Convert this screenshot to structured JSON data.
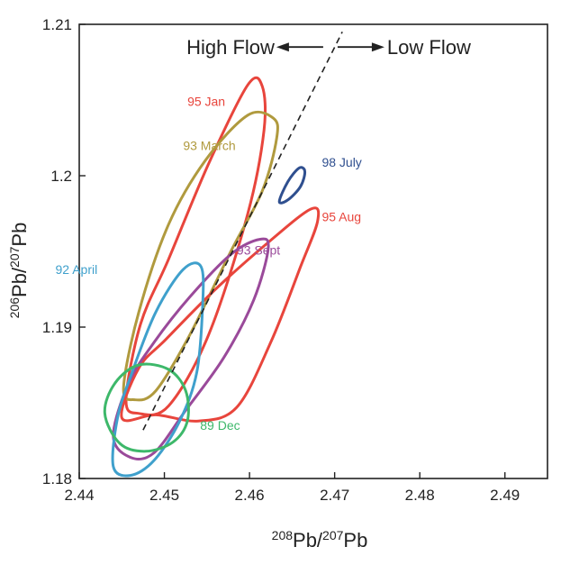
{
  "chart_data": {
    "type": "contour",
    "x_label": {
      "sup1": "208",
      "base1": "Pb/",
      "sup2": "207",
      "base2": "Pb"
    },
    "y_label": {
      "sup1": "206",
      "base1": "Pb/",
      "sup2": "207",
      "base2": "Pb"
    },
    "xlim": [
      2.44,
      2.495
    ],
    "ylim": [
      1.18,
      1.21
    ],
    "x_ticks": [
      2.44,
      2.45,
      2.46,
      2.47,
      2.48,
      2.49
    ],
    "x_tick_labels": [
      "2.44",
      "2.45",
      "2.46",
      "2.47",
      "2.48",
      "2.49"
    ],
    "y_ticks": [
      1.18,
      1.19,
      1.2,
      1.21
    ],
    "y_tick_labels": [
      "1.18",
      "1.19",
      "1.2",
      "1.21"
    ],
    "grid": false,
    "annotations": {
      "left": "High Flow",
      "right": "Low Flow",
      "arrow_center": [
        2.4695,
        1.2085
      ],
      "dashed_line": [
        [
          2.4475,
          1.1832
        ],
        [
          2.4709,
          1.2095
        ]
      ]
    },
    "series": [
      {
        "name": "95 Jan",
        "color": "#e8453c",
        "label_at": [
          2.4527,
          1.2046
        ],
        "outline": [
          [
            2.4455,
            1.1852
          ],
          [
            2.4472,
            1.1902
          ],
          [
            2.4505,
            1.1945
          ],
          [
            2.4552,
            1.2008
          ],
          [
            2.4598,
            1.206
          ],
          [
            2.4615,
            1.2059
          ],
          [
            2.4617,
            1.203
          ],
          [
            2.4598,
            1.1975
          ],
          [
            2.4552,
            1.1895
          ],
          [
            2.4505,
            1.1848
          ],
          [
            2.447,
            1.1843
          ]
        ]
      },
      {
        "name": "93 March",
        "color": "#b09a3e",
        "label_at": [
          2.4522,
          1.2017
        ],
        "outline": [
          [
            2.4452,
            1.186
          ],
          [
            2.447,
            1.191
          ],
          [
            2.4505,
            1.1968
          ],
          [
            2.4548,
            1.201
          ],
          [
            2.4598,
            1.204
          ],
          [
            2.4628,
            1.2038
          ],
          [
            2.4632,
            1.2025
          ],
          [
            2.4615,
            1.199
          ],
          [
            2.4578,
            1.195
          ],
          [
            2.453,
            1.1895
          ],
          [
            2.449,
            1.1858
          ],
          [
            2.4465,
            1.1852
          ]
        ]
      },
      {
        "name": "98 July",
        "color": "#2f4f8f",
        "label_at": [
          2.4685,
          1.2006
        ],
        "outline": [
          [
            2.4635,
            1.1983
          ],
          [
            2.4645,
            1.1996
          ],
          [
            2.4658,
            1.2005
          ],
          [
            2.4665,
            1.2003
          ],
          [
            2.466,
            1.1993
          ],
          [
            2.4645,
            1.1984
          ]
        ]
      },
      {
        "name": "95 Aug",
        "color": "#e8453c",
        "label_at": [
          2.4685,
          1.197
        ],
        "outline": [
          [
            2.445,
            1.184
          ],
          [
            2.447,
            1.1873
          ],
          [
            2.4502,
            1.1892
          ],
          [
            2.456,
            1.1925
          ],
          [
            2.462,
            1.1955
          ],
          [
            2.4672,
            1.1978
          ],
          [
            2.468,
            1.197
          ],
          [
            2.466,
            1.194
          ],
          [
            2.4625,
            1.189
          ],
          [
            2.4585,
            1.1847
          ],
          [
            2.454,
            1.1838
          ],
          [
            2.449,
            1.1842
          ]
        ]
      },
      {
        "name": "93 Sept",
        "color": "#9a4a9a",
        "label_at": [
          2.4585,
          1.1948
        ],
        "outline": [
          [
            2.444,
            1.1828
          ],
          [
            2.4458,
            1.1863
          ],
          [
            2.4488,
            1.189
          ],
          [
            2.453,
            1.192
          ],
          [
            2.4578,
            1.1948
          ],
          [
            2.4612,
            1.1958
          ],
          [
            2.4622,
            1.1952
          ],
          [
            2.4605,
            1.1918
          ],
          [
            2.457,
            1.188
          ],
          [
            2.4525,
            1.1845
          ],
          [
            2.4488,
            1.1817
          ],
          [
            2.446,
            1.1814
          ]
        ]
      },
      {
        "name": "92 April",
        "color": "#3fa0cc",
        "label_at": [
          2.4372,
          1.1935
        ],
        "outline": [
          [
            2.444,
            1.1808
          ],
          [
            2.4445,
            1.184
          ],
          [
            2.4462,
            1.187
          ],
          [
            2.449,
            1.191
          ],
          [
            2.4522,
            1.1938
          ],
          [
            2.4543,
            1.194
          ],
          [
            2.4545,
            1.1915
          ],
          [
            2.4538,
            1.187
          ],
          [
            2.4518,
            1.1838
          ],
          [
            2.4488,
            1.1812
          ],
          [
            2.446,
            1.1802
          ]
        ]
      },
      {
        "name": "89 Dec",
        "color": "#3db86a",
        "label_at": [
          2.4542,
          1.1832
        ],
        "outline": [
          [
            2.443,
            1.1843
          ],
          [
            2.4442,
            1.1863
          ],
          [
            2.447,
            1.1875
          ],
          [
            2.4505,
            1.1872
          ],
          [
            2.4525,
            1.1858
          ],
          [
            2.4527,
            1.1838
          ],
          [
            2.451,
            1.1824
          ],
          [
            2.4478,
            1.1818
          ],
          [
            2.4448,
            1.1823
          ]
        ]
      }
    ]
  }
}
